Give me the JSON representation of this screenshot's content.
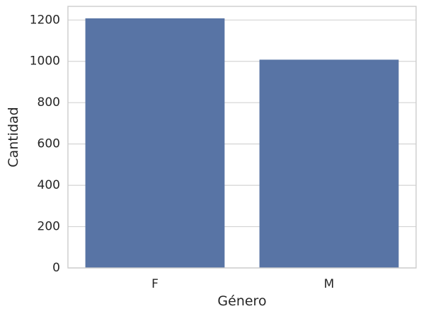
{
  "chart_data": {
    "type": "bar",
    "categories": [
      "F",
      "M"
    ],
    "values": [
      1208,
      1008
    ],
    "xlabel": "Género",
    "ylabel": "Cantidad",
    "ylim": [
      0,
      1266
    ],
    "yticks": [
      0,
      200,
      400,
      600,
      800,
      1000,
      1200
    ],
    "grid": "horizontal",
    "bar_color": "#5874a5",
    "grid_color": "#d4d4d4",
    "frame_color": "#cccccc",
    "text_color": "#262626"
  }
}
